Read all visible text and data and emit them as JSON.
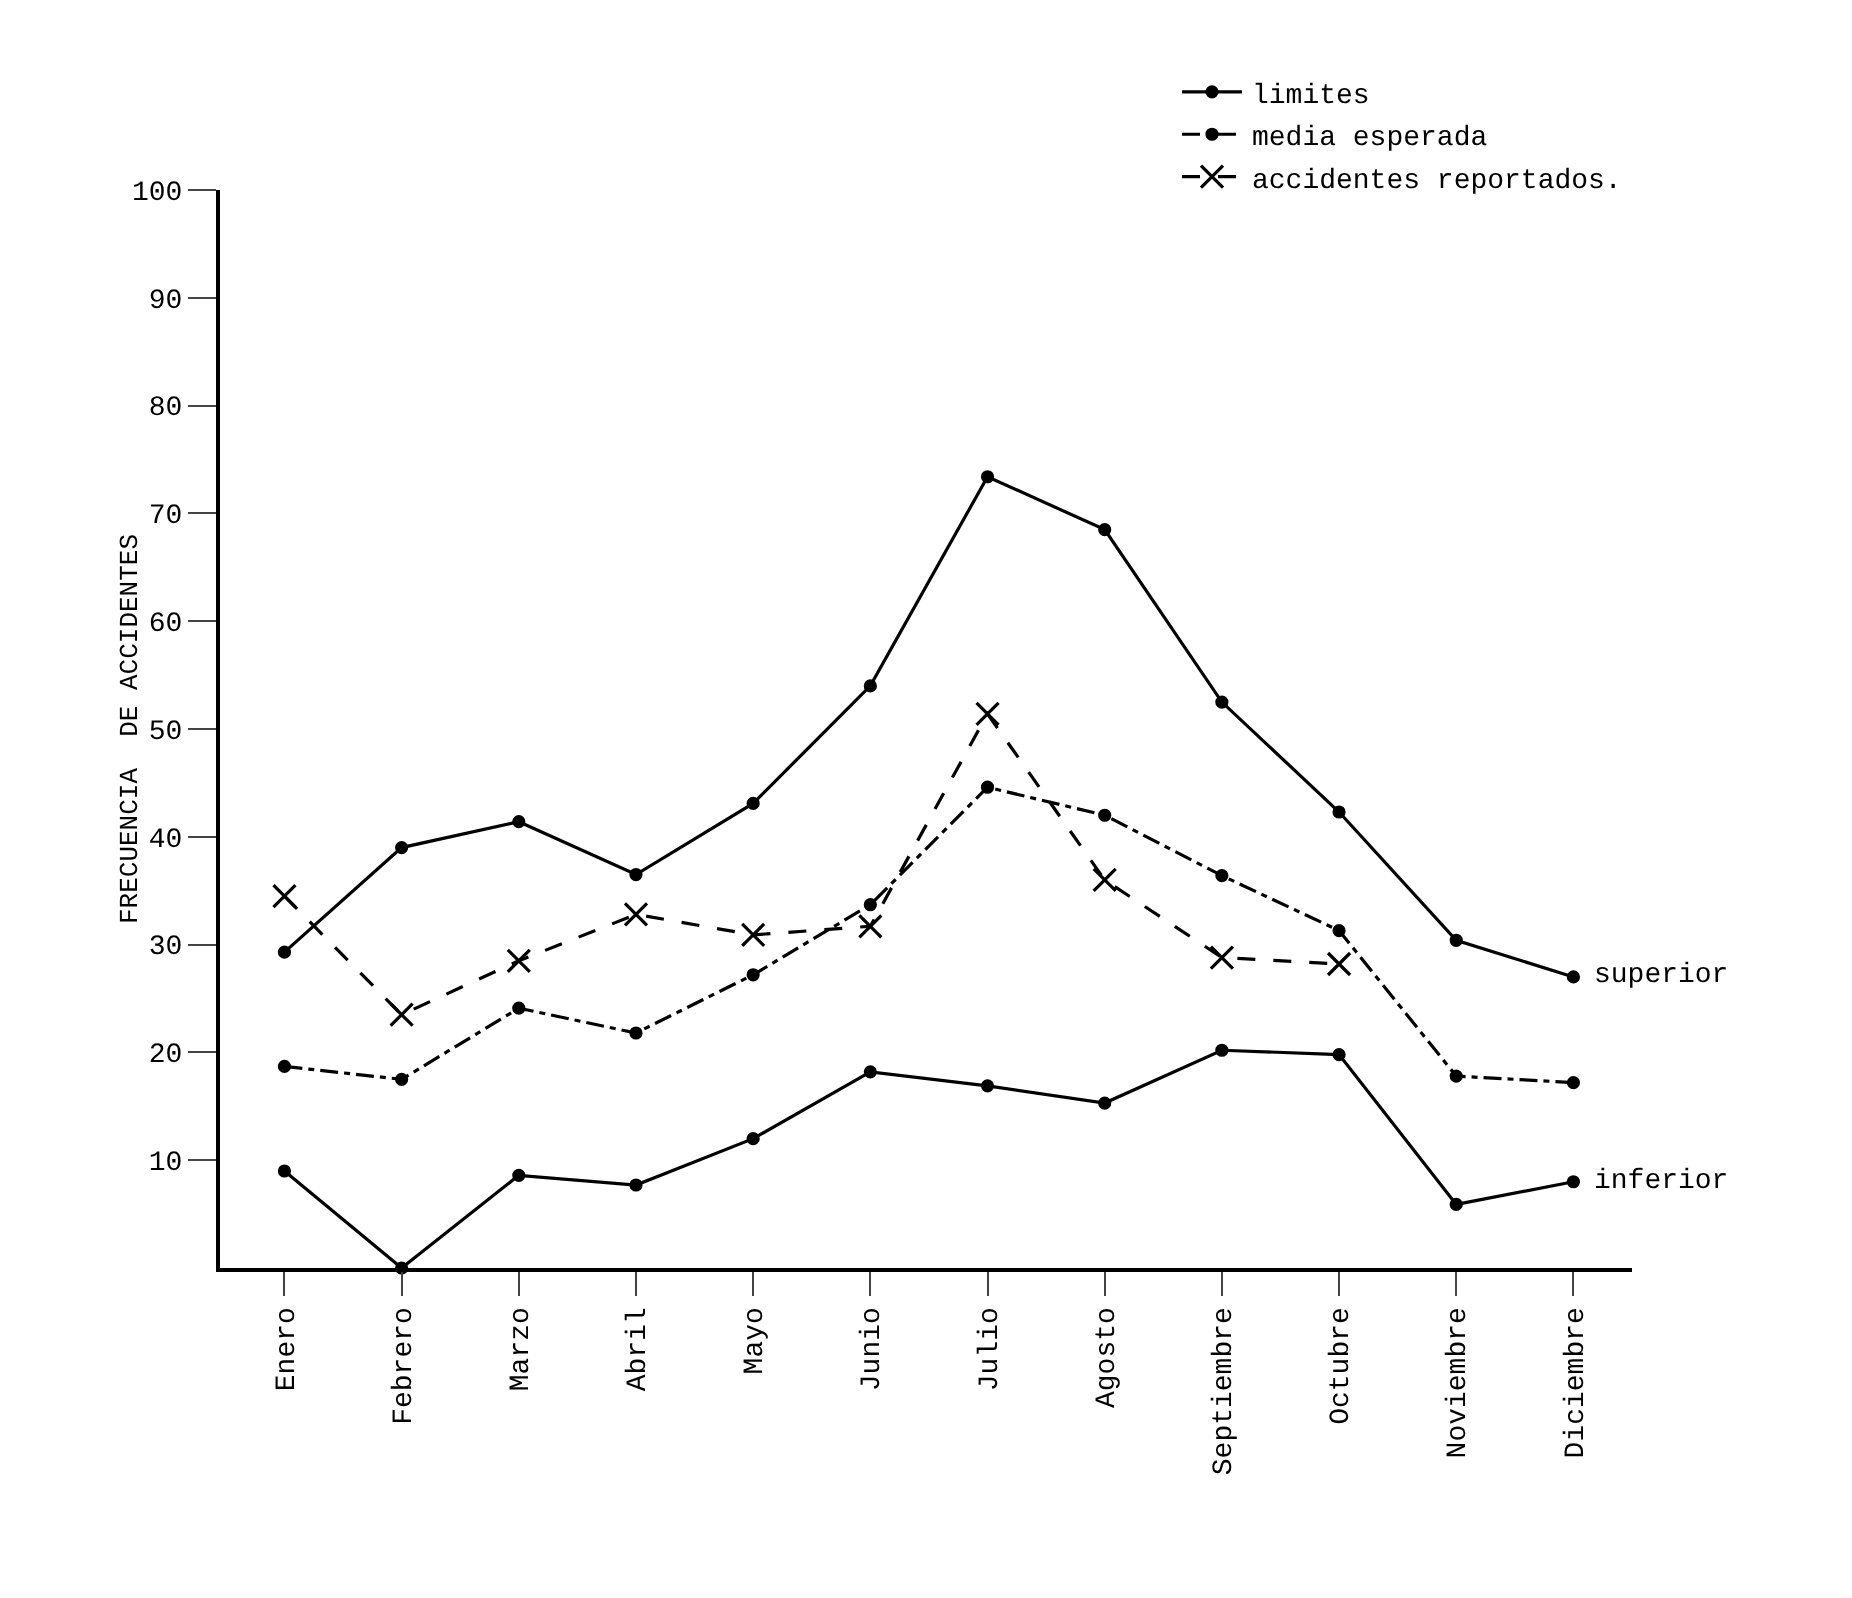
{
  "chart_data": {
    "type": "line",
    "ylabel": "FRECUENCIA  DE ACCIDENTES",
    "categories": [
      "Enero",
      "Febrero",
      "Marzo",
      "Abril",
      "Mayo",
      "Junio",
      "Julio",
      "Agosto",
      "Septiembre",
      "Octubre",
      "Noviembre",
      "Diciembre"
    ],
    "series": [
      {
        "name": "limites",
        "color": "#000000",
        "line_style": "solid",
        "marker": "circle",
        "values": [
          29.3,
          39,
          41.4,
          36.5,
          43.1,
          54,
          73.4,
          68.5,
          52.5,
          42.3,
          30.4,
          27
        ]
      },
      {
        "name": "media esperada",
        "color": "#000000",
        "line_style": "dashdot",
        "marker": "circle",
        "values": [
          18.7,
          17.5,
          24.1,
          21.8,
          27.2,
          33.7,
          44.6,
          42,
          36.4,
          31.3,
          17.8,
          17.2
        ]
      },
      {
        "name": "accidentes reportados.",
        "color": "#000000",
        "line_style": "dashed",
        "marker": "cross",
        "values": [
          34.5,
          23.5,
          28.5,
          32.8,
          30.9,
          31.7,
          51.4,
          36,
          28.8,
          28.2,
          null,
          null
        ]
      },
      {
        "color": "#000000",
        "line_style": "solid",
        "marker": "circle",
        "values": [
          9,
          0,
          8.6,
          7.7,
          12,
          18.2,
          16.9,
          15.3,
          20.2,
          19.8,
          5.9,
          8
        ]
      }
    ],
    "annotations": [
      {
        "text": "superior",
        "x": "Diciembre",
        "y": 27
      },
      {
        "text": "inferior",
        "x": "Diciembre",
        "y": 8
      }
    ],
    "ylim": [
      0,
      100
    ],
    "yticks": [
      10,
      20,
      30,
      40,
      50,
      60,
      70,
      80,
      90,
      100
    ],
    "grid": false,
    "legend": "top right"
  }
}
